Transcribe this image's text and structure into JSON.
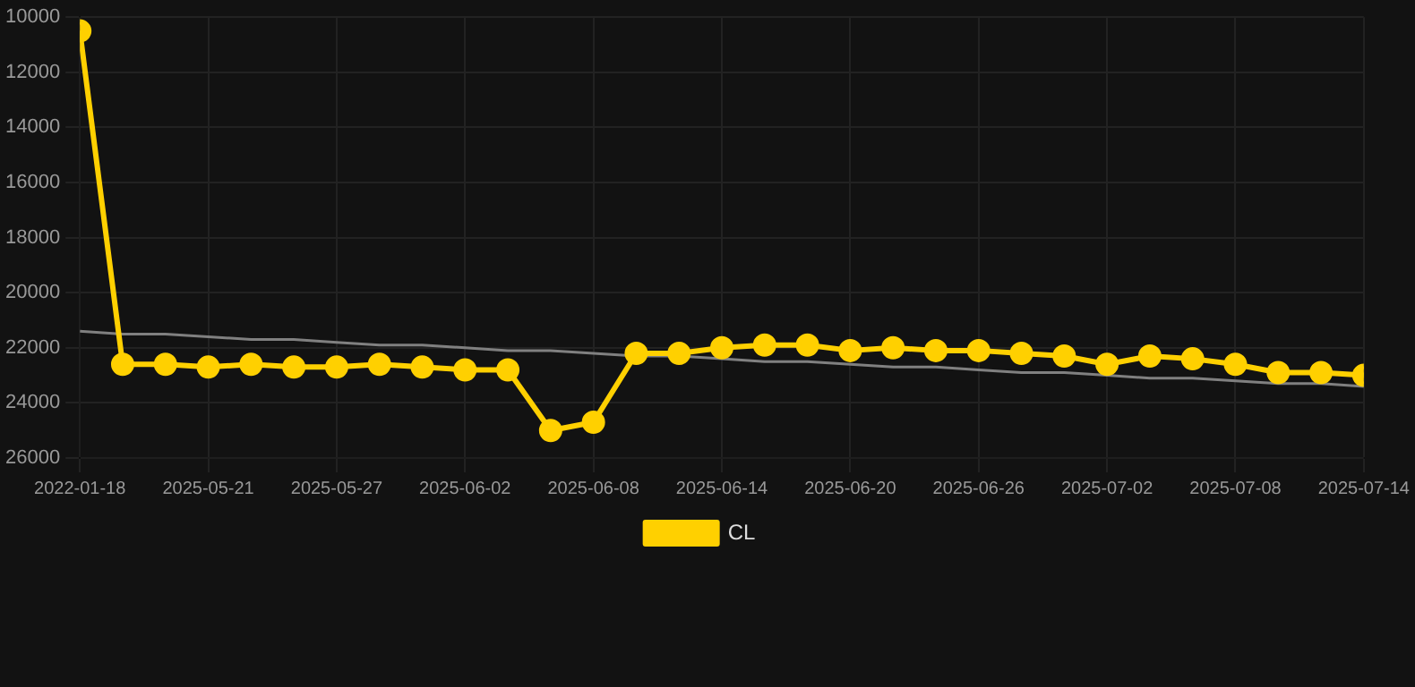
{
  "chart_data": {
    "type": "line",
    "categories": [
      "2022-01-18",
      null,
      null,
      "2025-05-21",
      null,
      null,
      "2025-05-27",
      null,
      null,
      "2025-06-02",
      null,
      null,
      "2025-06-08",
      null,
      null,
      "2025-06-14",
      null,
      null,
      "2025-06-20",
      null,
      null,
      "2025-06-26",
      null,
      null,
      "2025-07-02",
      null,
      null,
      "2025-07-08",
      null,
      null,
      "2025-07-14"
    ],
    "series": [
      {
        "name": "CL",
        "color": "#ffd000",
        "marker": "circle",
        "values": [
          10500,
          22600,
          22600,
          22700,
          22600,
          22700,
          22700,
          22600,
          22700,
          22800,
          22800,
          25000,
          24700,
          22200,
          22200,
          22000,
          21900,
          21900,
          22100,
          22000,
          22100,
          22100,
          22200,
          22300,
          22600,
          22300,
          22400,
          22600,
          22900,
          22900,
          23000
        ]
      },
      {
        "type": "line",
        "color": "#808080",
        "marker": "none",
        "values": [
          21400,
          21500,
          21500,
          21600,
          21700,
          21700,
          21800,
          21900,
          21900,
          22000,
          22100,
          22100,
          22200,
          22300,
          22300,
          22400,
          22500,
          22500,
          22600,
          22700,
          22700,
          22800,
          22900,
          22900,
          23000,
          23100,
          23100,
          23200,
          23300,
          23300,
          23400
        ]
      }
    ],
    "ylim": [
      26000,
      10000
    ],
    "yticks": [
      10000,
      12000,
      14000,
      16000,
      18000,
      20000,
      22000,
      24000,
      26000
    ],
    "grid": true,
    "legend": "bottom"
  }
}
